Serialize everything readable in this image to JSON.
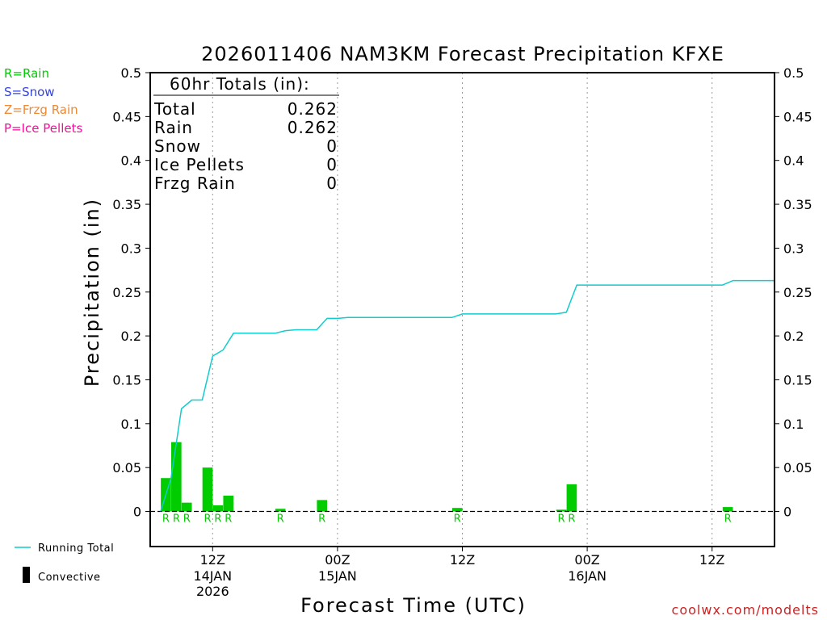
{
  "colors": {
    "rain": "#00cc00",
    "snow": "#3344dd",
    "frzg_rain": "#ee8833",
    "ice_pellets": "#ee1199",
    "running_total": "#11cccc",
    "convective": "#000000",
    "credit": "#cc2222"
  },
  "legend": {
    "rain": "R=Rain",
    "snow": "S=Snow",
    "frzg_rain": "Z=Frzg Rain",
    "ice_pellets": "P=Ice Pellets",
    "running_total": "Running Total",
    "convective": "Convective"
  },
  "totals_box": {
    "heading": "60hr Totals (in):",
    "rows": [
      {
        "label": "Total",
        "value": "0.262"
      },
      {
        "label": "Rain",
        "value": "0.262"
      },
      {
        "label": "Snow",
        "value": "0"
      },
      {
        "label": "Ice Pellets",
        "value": "0"
      },
      {
        "label": "Frzg Rain",
        "value": "0"
      }
    ]
  },
  "credit": "coolwx.com/modelts",
  "chart_data": {
    "type": "bar",
    "title": "2026011406 NAM3KM Forecast Precipitation KFXE",
    "ylabel": "Precipitation (in)",
    "xlabel": "Forecast Time (UTC)",
    "ylim": [
      -0.04,
      0.5
    ],
    "xlim": [
      4,
      64
    ],
    "y_ticks": [
      0,
      0.05,
      0.1,
      0.15,
      0.2,
      0.25,
      0.3,
      0.35,
      0.4,
      0.45,
      0.5
    ],
    "y_tick_labels": [
      "0",
      "0.05",
      "0.1",
      "0.15",
      "0.2",
      "0.25",
      "0.3",
      "0.35",
      "0.4",
      "0.45",
      "0.5"
    ],
    "x_ticks": [
      {
        "hour": 10,
        "label": "12Z",
        "sub1": "14JAN",
        "sub2": "2026"
      },
      {
        "hour": 22,
        "label": "00Z",
        "sub1": "15JAN",
        "sub2": ""
      },
      {
        "hour": 34,
        "label": "12Z",
        "sub1": "",
        "sub2": ""
      },
      {
        "hour": 46,
        "label": "00Z",
        "sub1": "16JAN",
        "sub2": ""
      },
      {
        "hour": 58,
        "label": "12Z",
        "sub1": "",
        "sub2": ""
      }
    ],
    "grid": "vertical dotted at each labeled tick",
    "series": [
      {
        "name": "Hourly precipitation",
        "kind": "bars",
        "hours": [
          6,
          7,
          8,
          10,
          11,
          12,
          17,
          21,
          34,
          44,
          45,
          60
        ],
        "values": [
          0.038,
          0.079,
          0.01,
          0.05,
          0.007,
          0.018,
          0.003,
          0.013,
          0.004,
          0.002,
          0.031,
          0.005
        ],
        "ptype": [
          "R",
          "R",
          "R",
          "R",
          "R",
          "R",
          "R",
          "R",
          "R",
          "R",
          "R",
          "R"
        ]
      },
      {
        "name": "Running Total",
        "kind": "line",
        "hours": [
          5,
          6,
          7,
          8,
          9,
          10,
          11,
          12,
          13,
          14,
          15,
          16,
          17,
          18,
          19,
          20,
          21,
          22,
          23,
          24,
          25,
          26,
          27,
          28,
          29,
          30,
          31,
          32,
          33,
          34,
          35,
          36,
          37,
          38,
          39,
          40,
          41,
          42,
          43,
          44,
          45,
          46,
          47,
          48,
          49,
          50,
          51,
          52,
          53,
          54,
          55,
          56,
          57,
          58,
          59,
          60,
          61,
          62
        ],
        "values": [
          0.0,
          0.038,
          0.117,
          0.127,
          0.127,
          0.177,
          0.184,
          0.203,
          0.203,
          0.203,
          0.203,
          0.203,
          0.206,
          0.207,
          0.207,
          0.207,
          0.22,
          0.22,
          0.221,
          0.221,
          0.221,
          0.221,
          0.221,
          0.221,
          0.221,
          0.221,
          0.221,
          0.221,
          0.221,
          0.225,
          0.225,
          0.225,
          0.225,
          0.225,
          0.225,
          0.225,
          0.225,
          0.225,
          0.225,
          0.227,
          0.258,
          0.258,
          0.258,
          0.258,
          0.258,
          0.258,
          0.258,
          0.258,
          0.258,
          0.258,
          0.258,
          0.258,
          0.258,
          0.258,
          0.258,
          0.263,
          0.263,
          0.263
        ]
      }
    ],
    "baseline": "dashed line at 0"
  }
}
